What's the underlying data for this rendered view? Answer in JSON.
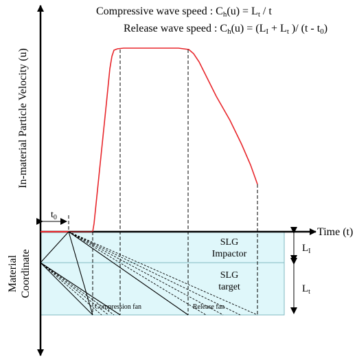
{
  "equations": {
    "compressive": {
      "prefix": "Compressive wave speed : C",
      "sub1": "h",
      "mid": "(u) = L",
      "sub2": "t",
      "suffix": " / t"
    },
    "release": {
      "prefix": "Release wave speed : C",
      "sub1": "h",
      "mid1": "(u) = (L",
      "sub2": "I",
      "mid2": " + L",
      "sub3": "t",
      "mid3": " )/ (t - t",
      "sub4": "0",
      "suffix": ")"
    }
  },
  "axes": {
    "y_label": "In-material Particle Velocity (u)",
    "x_label": "Time (t)",
    "lower_label_line1": "Material",
    "lower_label_line2": "Coordinate"
  },
  "t0": {
    "base": "t",
    "sub": "0"
  },
  "layers": {
    "impactor_line1": "SLG",
    "impactor_line2": "Impactor",
    "target_line1": "SLG",
    "target_line2": "target"
  },
  "thickness": {
    "impactor": {
      "base": "L",
      "sub": "I"
    },
    "target": {
      "base": "L",
      "sub": "t"
    }
  },
  "fans": {
    "compression": "Compression fan",
    "release": "Release fan"
  },
  "colors": {
    "velocity_curve": "#e8262b",
    "material_fill": "#dff7fa",
    "material_border": "#7fb8c0",
    "axis": "#000000"
  }
}
